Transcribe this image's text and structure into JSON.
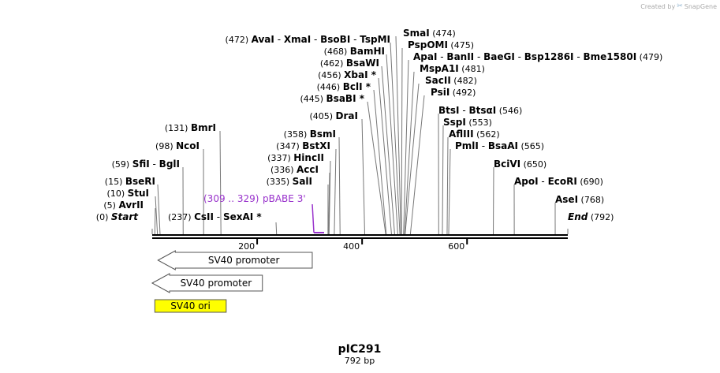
{
  "credit": {
    "created_by": "Created by",
    "brand": "SnapGene"
  },
  "plasmid": {
    "name": "pIC291",
    "length_label": "792 bp",
    "length_bp": 792
  },
  "ruler": {
    "ticks": [
      {
        "bp": 200,
        "label": "200"
      },
      {
        "bp": 400,
        "label": "400"
      },
      {
        "bp": 600,
        "label": "600"
      }
    ]
  },
  "sites": [
    {
      "id": "start",
      "bp": 0,
      "entries": [
        {
          "pos": "(0)",
          "names": [
            "Start"
          ],
          "italic": true
        }
      ]
    },
    {
      "id": "avrii",
      "bp": 5,
      "entries": [
        {
          "pos": "(5)",
          "names": [
            "AvrII"
          ]
        }
      ]
    },
    {
      "id": "stui",
      "bp": 10,
      "entries": [
        {
          "pos": "(10)",
          "names": [
            "StuI"
          ]
        }
      ]
    },
    {
      "id": "bseri",
      "bp": 15,
      "entries": [
        {
          "pos": "(15)",
          "names": [
            "BseRI"
          ]
        }
      ]
    },
    {
      "id": "sfii",
      "bp": 59,
      "entries": [
        {
          "pos": "(59)",
          "names": [
            "SfiI",
            "BglI"
          ]
        }
      ]
    },
    {
      "id": "ncoi",
      "bp": 98,
      "entries": [
        {
          "pos": "(98)",
          "names": [
            "NcoI"
          ]
        }
      ]
    },
    {
      "id": "bmri",
      "bp": 131,
      "entries": [
        {
          "pos": "(131)",
          "names": [
            "BmrI"
          ]
        }
      ]
    },
    {
      "id": "csii",
      "bp": 237,
      "entries": [
        {
          "pos": "(237)",
          "names": [
            "CsII",
            "SexAI *"
          ]
        }
      ]
    },
    {
      "id": "sali",
      "bp": 335,
      "entries": [
        {
          "pos": "(335)",
          "names": [
            "SalI"
          ]
        }
      ]
    },
    {
      "id": "acci",
      "bp": 336,
      "entries": [
        {
          "pos": "(336)",
          "names": [
            "AccI"
          ]
        }
      ]
    },
    {
      "id": "hincii",
      "bp": 337,
      "entries": [
        {
          "pos": "(337)",
          "names": [
            "HincII"
          ]
        }
      ]
    },
    {
      "id": "bstxi",
      "bp": 347,
      "entries": [
        {
          "pos": "(347)",
          "names": [
            "BstXI"
          ]
        }
      ]
    },
    {
      "id": "bsmi",
      "bp": 358,
      "entries": [
        {
          "pos": "(358)",
          "names": [
            "BsmI"
          ]
        }
      ]
    },
    {
      "id": "drai",
      "bp": 405,
      "entries": [
        {
          "pos": "(405)",
          "names": [
            "DraI"
          ]
        }
      ]
    },
    {
      "id": "bsabi",
      "bp": 445,
      "entries": [
        {
          "pos": "(445)",
          "names": [
            "BsaBI *"
          ]
        }
      ]
    },
    {
      "id": "bcli",
      "bp": 446,
      "entries": [
        {
          "pos": "(446)",
          "names": [
            "BclI *"
          ]
        }
      ]
    },
    {
      "id": "xbai",
      "bp": 456,
      "entries": [
        {
          "pos": "(456)",
          "names": [
            "XbaI *"
          ]
        }
      ]
    },
    {
      "id": "bsawi",
      "bp": 462,
      "entries": [
        {
          "pos": "(462)",
          "names": [
            "BsaWI"
          ]
        }
      ]
    },
    {
      "id": "bamhi",
      "bp": 468,
      "entries": [
        {
          "pos": "(468)",
          "names": [
            "BamHI"
          ]
        }
      ]
    },
    {
      "id": "avai",
      "bp": 472,
      "entries": [
        {
          "pos": "(472)",
          "names": [
            "AvaI",
            "XmaI",
            "BsoBI",
            "TspMI"
          ]
        }
      ]
    },
    {
      "id": "smai",
      "bp": 474,
      "entries": [
        {
          "pos": "(474)",
          "names": [
            "SmaI"
          ]
        }
      ]
    },
    {
      "id": "pspomi",
      "bp": 475,
      "entries": [
        {
          "pos": "(475)",
          "names": [
            "PspOMI"
          ]
        }
      ]
    },
    {
      "id": "apai",
      "bp": 479,
      "entries": [
        {
          "pos": "(479)",
          "names": [
            "ApaI",
            "BanII",
            "BaeGI",
            "Bsp1286I",
            "Bme1580I"
          ]
        }
      ]
    },
    {
      "id": "mspa1i",
      "bp": 481,
      "entries": [
        {
          "pos": "(481)",
          "names": [
            "MspA1I"
          ]
        }
      ]
    },
    {
      "id": "sacii",
      "bp": 482,
      "entries": [
        {
          "pos": "(482)",
          "names": [
            "SacII"
          ]
        }
      ]
    },
    {
      "id": "psii",
      "bp": 492,
      "entries": [
        {
          "pos": "(492)",
          "names": [
            "PsiI"
          ]
        }
      ]
    },
    {
      "id": "btsi",
      "bp": 546,
      "entries": [
        {
          "pos": "(546)",
          "names": [
            "BtsI",
            "BtsαI"
          ]
        }
      ]
    },
    {
      "id": "sspi",
      "bp": 553,
      "entries": [
        {
          "pos": "(553)",
          "names": [
            "SspI"
          ]
        }
      ]
    },
    {
      "id": "afliii",
      "bp": 562,
      "entries": [
        {
          "pos": "(562)",
          "names": [
            "AflIII"
          ]
        }
      ]
    },
    {
      "id": "pmli",
      "bp": 565,
      "entries": [
        {
          "pos": "(565)",
          "names": [
            "PmlI",
            "BsaAI"
          ]
        }
      ]
    },
    {
      "id": "bcivi",
      "bp": 650,
      "entries": [
        {
          "pos": "(650)",
          "names": [
            "BciVI"
          ]
        }
      ]
    },
    {
      "id": "apoi",
      "bp": 690,
      "entries": [
        {
          "pos": "(690)",
          "names": [
            "ApoI",
            "EcoRI"
          ]
        }
      ]
    },
    {
      "id": "asei",
      "bp": 768,
      "entries": [
        {
          "pos": "(768)",
          "names": [
            "AseI"
          ]
        }
      ]
    },
    {
      "id": "end",
      "bp": 792,
      "entries": [
        {
          "pos": "(792)",
          "names": [
            "End"
          ],
          "italic": true
        }
      ]
    }
  ],
  "primer": {
    "range": "(309 .. 329)",
    "name": "pBABE 3'",
    "color": "#9933cc"
  },
  "features": [
    {
      "id": "sv40-promoter-1",
      "label": "SV40 promoter",
      "type": "arrow-left",
      "start_bp": 11,
      "end_bp": 305,
      "fill": "#ffffff",
      "stroke": "#555555"
    },
    {
      "id": "sv40-promoter-2",
      "label": "SV40 promoter",
      "type": "arrow-left",
      "start_bp": 0,
      "end_bp": 210,
      "fill": "#ffffff",
      "stroke": "#555555"
    },
    {
      "id": "sv40-ori",
      "label": "SV40 ori",
      "type": "box",
      "start_bp": 5,
      "end_bp": 141,
      "fill": "#ffff00",
      "stroke": "#555555"
    }
  ]
}
